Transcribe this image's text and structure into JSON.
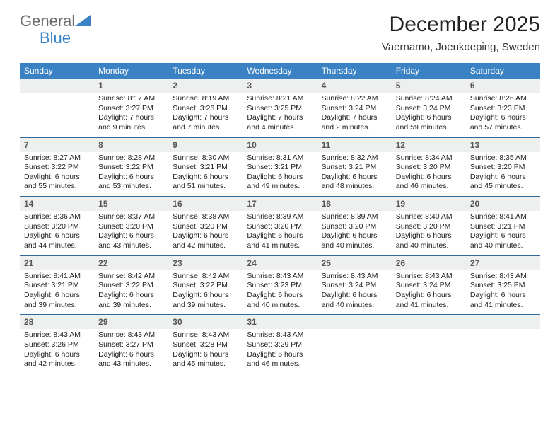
{
  "brand": {
    "part1": "General",
    "part2": "Blue"
  },
  "title": "December 2025",
  "location": "Vaernamo, Joenkoeping, Sweden",
  "colors": {
    "header_bg": "#3b82c4",
    "header_text": "#ffffff",
    "date_bg": "#eef0f0",
    "date_text": "#555555",
    "rule": "#2f6aa0",
    "body_text": "#222222",
    "brand_gray": "#6b6b6b",
    "brand_blue": "#3b82c4"
  },
  "day_names": [
    "Sunday",
    "Monday",
    "Tuesday",
    "Wednesday",
    "Thursday",
    "Friday",
    "Saturday"
  ],
  "weeks": [
    {
      "dates": [
        "",
        "1",
        "2",
        "3",
        "4",
        "5",
        "6"
      ],
      "info": [
        "",
        "Sunrise: 8:17 AM\nSunset: 3:27 PM\nDaylight: 7 hours and 9 minutes.",
        "Sunrise: 8:19 AM\nSunset: 3:26 PM\nDaylight: 7 hours and 7 minutes.",
        "Sunrise: 8:21 AM\nSunset: 3:25 PM\nDaylight: 7 hours and 4 minutes.",
        "Sunrise: 8:22 AM\nSunset: 3:24 PM\nDaylight: 7 hours and 2 minutes.",
        "Sunrise: 8:24 AM\nSunset: 3:24 PM\nDaylight: 6 hours and 59 minutes.",
        "Sunrise: 8:26 AM\nSunset: 3:23 PM\nDaylight: 6 hours and 57 minutes."
      ]
    },
    {
      "dates": [
        "7",
        "8",
        "9",
        "10",
        "11",
        "12",
        "13"
      ],
      "info": [
        "Sunrise: 8:27 AM\nSunset: 3:22 PM\nDaylight: 6 hours and 55 minutes.",
        "Sunrise: 8:28 AM\nSunset: 3:22 PM\nDaylight: 6 hours and 53 minutes.",
        "Sunrise: 8:30 AM\nSunset: 3:21 PM\nDaylight: 6 hours and 51 minutes.",
        "Sunrise: 8:31 AM\nSunset: 3:21 PM\nDaylight: 6 hours and 49 minutes.",
        "Sunrise: 8:32 AM\nSunset: 3:21 PM\nDaylight: 6 hours and 48 minutes.",
        "Sunrise: 8:34 AM\nSunset: 3:20 PM\nDaylight: 6 hours and 46 minutes.",
        "Sunrise: 8:35 AM\nSunset: 3:20 PM\nDaylight: 6 hours and 45 minutes."
      ]
    },
    {
      "dates": [
        "14",
        "15",
        "16",
        "17",
        "18",
        "19",
        "20"
      ],
      "info": [
        "Sunrise: 8:36 AM\nSunset: 3:20 PM\nDaylight: 6 hours and 44 minutes.",
        "Sunrise: 8:37 AM\nSunset: 3:20 PM\nDaylight: 6 hours and 43 minutes.",
        "Sunrise: 8:38 AM\nSunset: 3:20 PM\nDaylight: 6 hours and 42 minutes.",
        "Sunrise: 8:39 AM\nSunset: 3:20 PM\nDaylight: 6 hours and 41 minutes.",
        "Sunrise: 8:39 AM\nSunset: 3:20 PM\nDaylight: 6 hours and 40 minutes.",
        "Sunrise: 8:40 AM\nSunset: 3:20 PM\nDaylight: 6 hours and 40 minutes.",
        "Sunrise: 8:41 AM\nSunset: 3:21 PM\nDaylight: 6 hours and 40 minutes."
      ]
    },
    {
      "dates": [
        "21",
        "22",
        "23",
        "24",
        "25",
        "26",
        "27"
      ],
      "info": [
        "Sunrise: 8:41 AM\nSunset: 3:21 PM\nDaylight: 6 hours and 39 minutes.",
        "Sunrise: 8:42 AM\nSunset: 3:22 PM\nDaylight: 6 hours and 39 minutes.",
        "Sunrise: 8:42 AM\nSunset: 3:22 PM\nDaylight: 6 hours and 39 minutes.",
        "Sunrise: 8:43 AM\nSunset: 3:23 PM\nDaylight: 6 hours and 40 minutes.",
        "Sunrise: 8:43 AM\nSunset: 3:24 PM\nDaylight: 6 hours and 40 minutes.",
        "Sunrise: 8:43 AM\nSunset: 3:24 PM\nDaylight: 6 hours and 41 minutes.",
        "Sunrise: 8:43 AM\nSunset: 3:25 PM\nDaylight: 6 hours and 41 minutes."
      ]
    },
    {
      "dates": [
        "28",
        "29",
        "30",
        "31",
        "",
        "",
        ""
      ],
      "info": [
        "Sunrise: 8:43 AM\nSunset: 3:26 PM\nDaylight: 6 hours and 42 minutes.",
        "Sunrise: 8:43 AM\nSunset: 3:27 PM\nDaylight: 6 hours and 43 minutes.",
        "Sunrise: 8:43 AM\nSunset: 3:28 PM\nDaylight: 6 hours and 45 minutes.",
        "Sunrise: 8:43 AM\nSunset: 3:29 PM\nDaylight: 6 hours and 46 minutes.",
        "",
        "",
        ""
      ]
    }
  ]
}
